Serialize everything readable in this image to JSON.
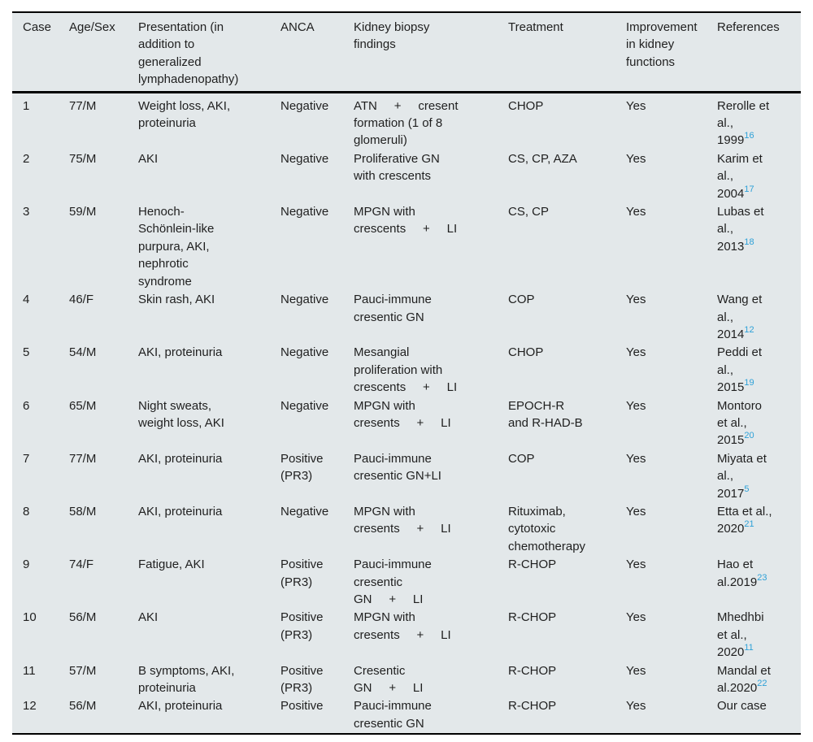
{
  "colors": {
    "table_background": "#e3e8ea",
    "text": "#1f1f1f",
    "rule": "#000000",
    "citation_blue": "#2da0d7"
  },
  "table": {
    "columns": [
      {
        "key": "case_no",
        "label": "Case"
      },
      {
        "key": "age_sex",
        "label": "Age/Sex"
      },
      {
        "key": "presentation",
        "label": "Presentation (in\naddition to\ngeneralized\nlymphadenopathy)"
      },
      {
        "key": "anca",
        "label": "ANCA"
      },
      {
        "key": "biopsy",
        "label": "Kidney biopsy\nfindings"
      },
      {
        "key": "treatment",
        "label": "Treatment"
      },
      {
        "key": "improvement",
        "label": "Improvement\nin kidney\nfunctions"
      },
      {
        "key": "reference",
        "label": "References"
      }
    ],
    "rows": [
      {
        "case_no": "1",
        "age_sex": "77/M",
        "presentation": "Weight loss, AKI,\nproteinuria",
        "anca": "Negative",
        "biopsy": "ATN     +     cresent\nformation (1 of 8\nglomeruli)",
        "treatment": "CHOP",
        "improvement": "Yes",
        "reference": "Rerolle et\nal.,\n1999",
        "ref_sup": "16"
      },
      {
        "case_no": "2",
        "age_sex": "75/M",
        "presentation": "AKI",
        "anca": "Negative",
        "biopsy": "Proliferative GN\nwith crescents",
        "treatment": "CS, CP, AZA",
        "improvement": "Yes",
        "reference": "Karim et\nal.,\n2004",
        "ref_sup": "17"
      },
      {
        "case_no": "3",
        "age_sex": "59/M",
        "presentation": "Henoch-\nSchönlein-like\npurpura, AKI,\nnephrotic\nsyndrome",
        "anca": "Negative",
        "biopsy": "MPGN with\ncrescents     +     LI",
        "treatment": "CS, CP",
        "improvement": "Yes",
        "reference": "Lubas et\nal.,\n2013",
        "ref_sup": "18"
      },
      {
        "case_no": "4",
        "age_sex": "46/F",
        "presentation": "Skin rash, AKI",
        "anca": "Negative",
        "biopsy": "Pauci-immune\ncresentic GN",
        "treatment": "COP",
        "improvement": "Yes",
        "reference": "Wang et\nal.,\n2014",
        "ref_sup": "12"
      },
      {
        "case_no": "5",
        "age_sex": "54/M",
        "presentation": "AKI, proteinuria",
        "anca": "Negative",
        "biopsy": "Mesangial\nproliferation with\ncrescents     +     LI",
        "treatment": "CHOP",
        "improvement": "Yes",
        "reference": "Peddi et\nal.,\n2015",
        "ref_sup": "19"
      },
      {
        "case_no": "6",
        "age_sex": "65/M",
        "presentation": "Night sweats,\nweight loss, AKI",
        "anca": "Negative",
        "biopsy": "MPGN with\ncresents     +     LI",
        "treatment": "EPOCH-R\nand R-HAD-B",
        "improvement": "Yes",
        "reference": "Montoro\net al.,\n2015",
        "ref_sup": "20"
      },
      {
        "case_no": "7",
        "age_sex": "77/M",
        "presentation": "AKI, proteinuria",
        "anca": "Positive\n(PR3)",
        "biopsy": "Pauci-immune\ncresentic GN+LI",
        "treatment": "COP",
        "improvement": "Yes",
        "reference": "Miyata et\nal.,\n2017",
        "ref_sup": "5"
      },
      {
        "case_no": "8",
        "age_sex": "58/M",
        "presentation": "AKI, proteinuria",
        "anca": "Negative",
        "biopsy": "MPGN with\ncresents     +     LI",
        "treatment": "Rituximab,\ncytotoxic\nchemotherapy",
        "improvement": "Yes",
        "reference": "Etta et al.,\n2020",
        "ref_sup": "21"
      },
      {
        "case_no": "9",
        "age_sex": "74/F",
        "presentation": "Fatigue, AKI",
        "anca": "Positive\n(PR3)",
        "biopsy": "Pauci-immune\ncresentic\nGN     +     LI",
        "treatment": "R-CHOP",
        "improvement": "Yes",
        "reference": "Hao et\nal.2019",
        "ref_sup": "23"
      },
      {
        "case_no": "10",
        "age_sex": "56/M",
        "presentation": "AKI",
        "anca": "Positive\n(PR3)",
        "biopsy": "MPGN with\ncresents     +     LI",
        "treatment": "R-CHOP",
        "improvement": "Yes",
        "reference": "Mhedhbi\net al.,\n2020",
        "ref_sup": "11"
      },
      {
        "case_no": "11",
        "age_sex": "57/M",
        "presentation": "B symptoms, AKI,\nproteinuria",
        "anca": "Positive\n(PR3)",
        "biopsy": "Cresentic\nGN     +     LI",
        "treatment": "R-CHOP",
        "improvement": "Yes",
        "reference": "Mandal et\nal.2020",
        "ref_sup": "22"
      },
      {
        "case_no": "12",
        "age_sex": "56/M",
        "presentation": "AKI, proteinuria",
        "anca": "Positive",
        "biopsy": "Pauci-immune\ncresentic GN",
        "treatment": "R-CHOP",
        "improvement": "Yes",
        "reference": "Our case",
        "ref_sup": ""
      }
    ]
  }
}
